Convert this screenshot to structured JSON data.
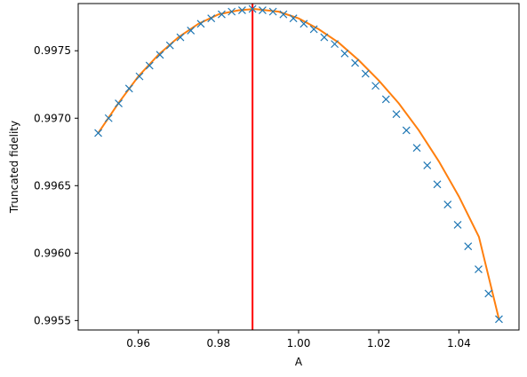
{
  "chart_data": {
    "type": "scatter",
    "title": "",
    "xlabel": "A",
    "ylabel": "Truncated fidelity",
    "xlim": [
      0.945,
      1.055
    ],
    "ylim": [
      0.99543,
      0.99785
    ],
    "x_ticks": [
      0.96,
      0.98,
      1.0,
      1.02,
      1.04
    ],
    "x_tick_labels": [
      "0.96",
      "0.98",
      "1.00",
      "1.02",
      "1.04"
    ],
    "y_ticks": [
      0.9955,
      0.996,
      0.9965,
      0.997,
      0.9975
    ],
    "y_tick_labels": [
      "0.9955",
      "0.9960",
      "0.9965",
      "0.9970",
      "0.9975"
    ],
    "grid": false,
    "series": [
      {
        "kind": "markers",
        "marker": "x",
        "color": "#1f77b4",
        "x": [
          0.95,
          0.9526,
          0.9551,
          0.9577,
          0.9603,
          0.9628,
          0.9654,
          0.9679,
          0.9705,
          0.9731,
          0.9756,
          0.9782,
          0.9808,
          0.9833,
          0.9859,
          0.9885,
          0.991,
          0.9936,
          0.9962,
          0.9987,
          1.0013,
          1.0038,
          1.0064,
          1.009,
          1.0115,
          1.0141,
          1.0167,
          1.0192,
          1.0218,
          1.0244,
          1.0269,
          1.0295,
          1.0321,
          1.0346,
          1.0372,
          1.0397,
          1.0423,
          1.0449,
          1.0474,
          1.05
        ],
        "y": [
          0.99689,
          0.997,
          0.99711,
          0.99722,
          0.99731,
          0.99739,
          0.99747,
          0.99754,
          0.9976,
          0.99765,
          0.9977,
          0.99774,
          0.99777,
          0.99779,
          0.9978,
          0.99781,
          0.9978,
          0.99779,
          0.99777,
          0.99774,
          0.9977,
          0.99766,
          0.9976,
          0.99755,
          0.99748,
          0.99741,
          0.99733,
          0.99724,
          0.99714,
          0.99703,
          0.99691,
          0.99678,
          0.99665,
          0.99651,
          0.99636,
          0.99621,
          0.99605,
          0.99588,
          0.9957,
          0.99551
        ]
      },
      {
        "kind": "fit-line",
        "color": "#ff7f0e",
        "x": [
          0.95,
          0.955,
          0.96,
          0.965,
          0.97,
          0.975,
          0.98,
          0.985,
          0.989,
          0.995,
          1.0,
          1.005,
          1.01,
          1.015,
          1.02,
          1.025,
          1.03,
          1.035,
          1.04,
          1.045,
          1.05
        ],
        "y": [
          0.99689,
          0.99711,
          0.99731,
          0.99747,
          0.9976,
          0.9977,
          0.99777,
          0.9978,
          0.99781,
          0.99779,
          0.99774,
          0.99766,
          0.99756,
          0.99743,
          0.99728,
          0.99711,
          0.99691,
          0.99668,
          0.99642,
          0.99612,
          0.99551
        ]
      }
    ],
    "vline": {
      "x": 0.9885,
      "color": "#ff0000"
    }
  }
}
